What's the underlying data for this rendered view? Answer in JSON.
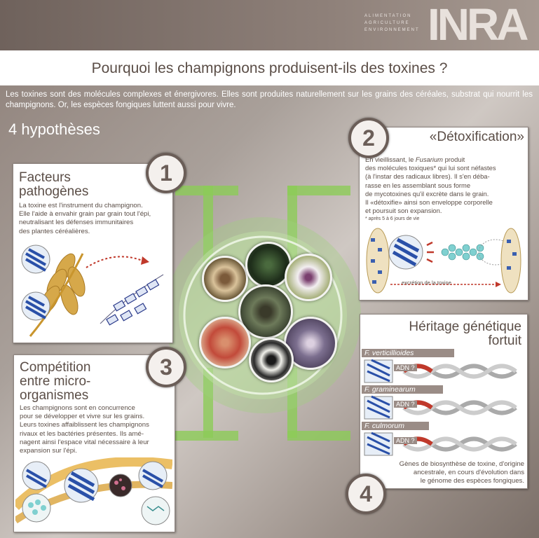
{
  "header": {
    "tagline": [
      "ALIMENTATION",
      "AGRICULTURE",
      "ENVIRONNEMENT"
    ],
    "logo": "INRA",
    "title": "Pourquoi les champignons produisent-ils des toxines ?",
    "intro": "Les toxines sont des molécules complexes et énergivores. Elles sont produites naturellement sur les grains des céréales, substrat qui nourrit les champignons. Or, les espèces fongiques luttent aussi pour vivre.",
    "subtitle": "4 hypothèses"
  },
  "panels": [
    {
      "number": "1",
      "title_lines": [
        "Facteurs",
        "pathogènes"
      ],
      "text_lines": [
        "La toxine est l'instrument du champignon.",
        "Elle l'aide à envahir grain par grain tout l'épi,",
        "neutralisant les défenses immunitaires",
        "des plantes céréalières."
      ]
    },
    {
      "number": "2",
      "title": "«Détoxification»",
      "text_pre": "En vieillissant, le ",
      "text_italic": "Fusarium",
      "text_post": " produit",
      "text_lines": [
        "des molécules toxiques* qui lui sont néfastes",
        "(à l'instar des radicaux libres). Il s'en déba-",
        "rasse en les assemblant sous forme",
        "de mycotoxines qu'il excrète dans le grain.",
        "Il «détoxifie» ainsi son enveloppe corporelle",
        "et poursuit son expansion."
      ],
      "footnote": "* après 5 à 6 jours de vie",
      "caption": "excrétion de la toxine"
    },
    {
      "number": "3",
      "title_lines": [
        "Compétition",
        "entre micro-",
        "organismes"
      ],
      "text_lines": [
        "Les champignons sont en concurrence",
        "pour se développer et vivre sur les grains.",
        "Leurs toxines affaiblissent les champignons",
        "rivaux et les bactéries présentes. Ils amé-",
        "nagent ainsi l'espace vital nécessaire à leur",
        "expansion sur l'épi."
      ]
    },
    {
      "number": "4",
      "title_lines": [
        "Héritage génétique",
        "fortuit"
      ],
      "species": [
        "F. verticillioides",
        "F. graminearum",
        "F. culmorum"
      ],
      "adn_label": "ADN ?",
      "text_lines": [
        "Gènes de biosynthèse de toxine, d'origine",
        "ancestrale, en cours d'évolution dans",
        "le génome des espèces fongiques."
      ]
    }
  ],
  "colors": {
    "text_brown": "#5b4e47",
    "accent_green": "#7ec44a",
    "label_grey": "#9a8c86",
    "dna_red": "#c0392b"
  }
}
